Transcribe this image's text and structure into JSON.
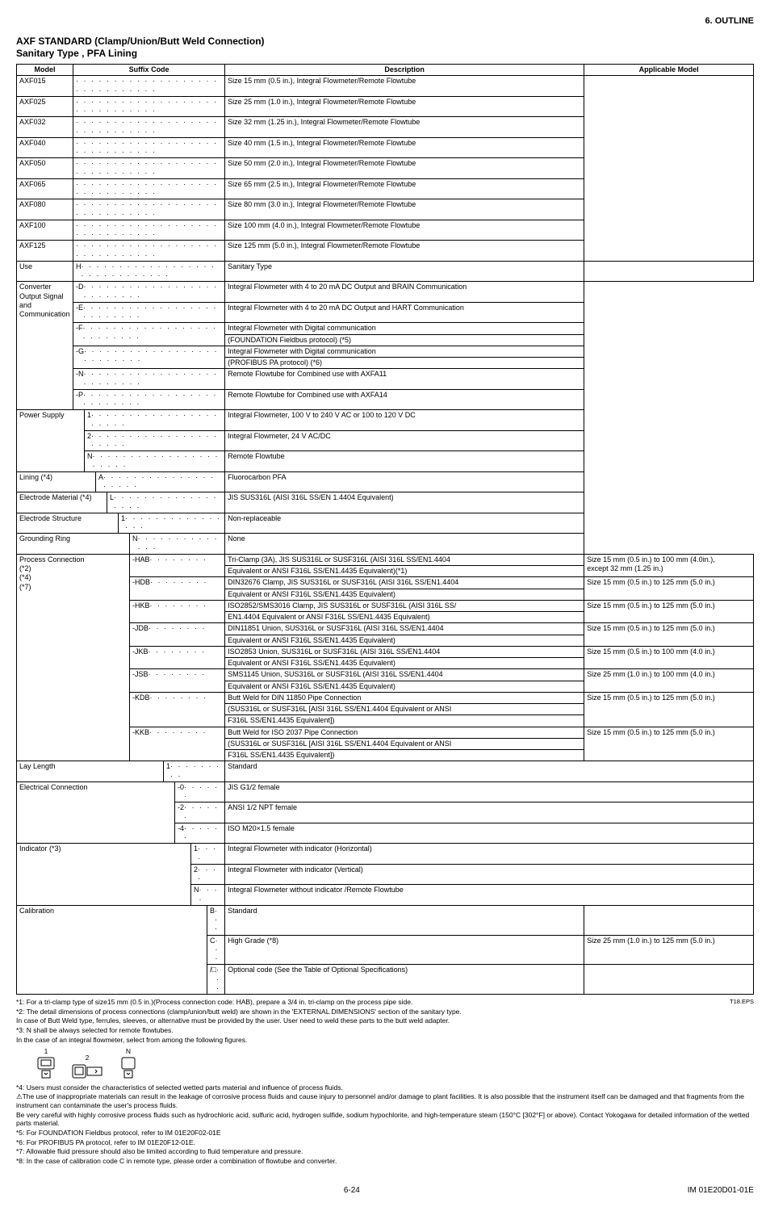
{
  "page_header": "6.  OUTLINE",
  "title": "AXF STANDARD  (Clamp/Union/Butt Weld Connection)",
  "subtitle": "Sanitary Type , PFA Lining",
  "columns": {
    "model": "Model",
    "suffix": "Suffix Code",
    "desc": "Description",
    "app": "Applicable Model"
  },
  "models": [
    {
      "code": "AXF015",
      "desc": "Size 15 mm (0.5 in.),  Integral Flowmeter/Remote Flowtube"
    },
    {
      "code": "AXF025",
      "desc": "Size 25 mm (1.0 in.),  Integral Flowmeter/Remote Flowtube"
    },
    {
      "code": "AXF032",
      "desc": "Size 32 mm (1.25 in.), Integral Flowmeter/Remote Flowtube"
    },
    {
      "code": "AXF040",
      "desc": "Size 40 mm (1.5 in.),  Integral Flowmeter/Remote Flowtube"
    },
    {
      "code": "AXF050",
      "desc": "Size 50 mm (2.0 in.),  Integral Flowmeter/Remote Flowtube"
    },
    {
      "code": "AXF065",
      "desc": "Size 65 mm (2.5 in.),  Integral Flowmeter/Remote Flowtube"
    },
    {
      "code": "AXF080",
      "desc": "Size 80 mm (3.0 in.),  Integral Flowmeter/Remote Flowtube"
    },
    {
      "code": "AXF100",
      "desc": "Size 100 mm (4.0 in.), Integral Flowmeter/Remote Flowtube"
    },
    {
      "code": "AXF125",
      "desc": "Size 125 mm (5.0 in.), Integral Flowmeter/Remote Flowtube"
    }
  ],
  "use": {
    "label": "Use",
    "code": "H",
    "desc": "Sanitary Type"
  },
  "converter_block_label": "Converter Output Signal and Communication",
  "converter": [
    {
      "code": "-D",
      "desc": "Integral Flowmeter with 4 to 20 mA DC Output and  BRAIN Communication"
    },
    {
      "code": "-E",
      "desc": "Integral Flowmeter with 4 to 20 mA DC Output and  HART Communication"
    },
    {
      "code": "-F",
      "desc_lines": [
        "Integral Flowmeter with Digital communication",
        "(FOUNDATION Fieldbus protocol) (*5)"
      ]
    },
    {
      "code": "-G",
      "desc_lines": [
        "Integral Flowmeter with Digital communication",
        "(PROFIBUS PA protocol) (*6)"
      ]
    },
    {
      "code": "-N",
      "desc": "Remote Flowtube for Combined  use with AXFA11"
    },
    {
      "code": "-P",
      "desc": "Remote Flowtube for Combined  use with AXFA14"
    }
  ],
  "power": {
    "label": "Power Supply",
    "rows": [
      {
        "code": "1",
        "desc": "Integral Flowmeter, 100 V to 240 V AC or 100 to 120 V DC"
      },
      {
        "code": "2",
        "desc": "Integral Flowmeter, 24 V AC/DC"
      },
      {
        "code": "N",
        "desc": "Remote Flowtube"
      }
    ]
  },
  "lining": {
    "label": "Lining (*4)",
    "code": "A",
    "desc": "Fluorocarbon PFA"
  },
  "elec_mat": {
    "label": "Electrode Material (*4)",
    "code": "L",
    "desc": "JIS SUS316L (AISI 316L SS/EN 1.4404 Equivalent)"
  },
  "elec_struct": {
    "label": "Electrode Structure",
    "code": "1",
    "desc": "Non-replaceable"
  },
  "ground_ring": {
    "label": "Grounding Ring",
    "code": "N",
    "desc": "None"
  },
  "process": {
    "label": "Process Connection (*2) (*4) (*7)",
    "rows": [
      {
        "code": "-HAB",
        "desc_lines": [
          "Tri-Clamp (3A), JIS SUS316L or SUSF316L (AISI 316L SS/EN1.4404",
          "Equivalent or ANSI F316L SS/EN1.4435 Equivalent)(*1)"
        ],
        "app_lines": [
          "Size 15 mm (0.5 in.) to 100 mm (4.0in.),",
          "except 32 mm (1.25 in.)"
        ]
      },
      {
        "code": "-HDB",
        "desc_lines": [
          "DIN32676 Clamp, JIS SUS316L or SUSF316L (AISI 316L SS/EN1.4404",
          "Equivalent or ANSI F316L SS/EN1.4435 Equivalent)"
        ],
        "app": "Size 15 mm (0.5 in.) to 125 mm (5.0 in.)"
      },
      {
        "code": "-HKB",
        "desc_lines": [
          "ISO2852/SMS3016 Clamp, JIS SUS316L or SUSF316L (AISI 316L SS/",
          "EN1.4404 Equivalent or ANSI F316L SS/EN1.4435 Equivalent)"
        ],
        "app": "Size 15 mm (0.5 in.) to 125 mm (5.0 in.)"
      },
      {
        "code": "-JDB",
        "desc_lines": [
          "DIN11851 Union, SUS316L or SUSF316L (AISI 316L SS/EN1.4404",
          "Equivalent or ANSI F316L SS/EN1.4435 Equivalent)"
        ],
        "app": "Size 15 mm (0.5 in.) to 125 mm (5.0 in.)"
      },
      {
        "code": "-JKB",
        "desc_lines": [
          "ISO2853 Union, SUS316L or SUSF316L (AISI 316L SS/EN1.4404",
          "Equivalent or ANSI F316L SS/EN1.4435 Equivalent)"
        ],
        "app": "Size 15 mm (0.5 in.) to 100 mm (4.0 in.)"
      },
      {
        "code": "-JSB",
        "desc_lines": [
          "SMS1145 Union, SUS316L or SUSF316L (AISI 316L SS/EN1.4404",
          "Equivalent or ANSI F316L SS/EN1.4435 Equivalent)"
        ],
        "app": "Size 25 mm (1.0 in.) to 100 mm (4.0 in.)"
      },
      {
        "code": "-KDB",
        "desc_lines": [
          "Butt Weld for DIN 11850 Pipe Connection",
          "(SUS316L or SUSF316L [AISI 316L SS/EN1.4404 Equivalent or ANSI",
          "F316L SS/EN1.4435 Equivalent])"
        ],
        "app": "Size 15 mm (0.5 in.) to 125 mm (5.0 in.)"
      },
      {
        "code": "-KKB",
        "desc_lines": [
          "Butt Weld for ISO 2037 Pipe Connection",
          "(SUS316L or SUSF316L [AISI 316L SS/EN1.4404 Equivalent or ANSI",
          "F316L SS/EN1.4435 Equivalent])"
        ],
        "app": "Size 15 mm (0.5 in.) to 125 mm (5.0 in.)"
      }
    ]
  },
  "lay_length": {
    "label": "Lay Length",
    "code": "1",
    "desc": "Standard"
  },
  "elec_conn": {
    "label": "Electrical Connection",
    "rows": [
      {
        "code": "-0",
        "desc": "JIS G1/2 female"
      },
      {
        "code": "-2",
        "desc": "ANSI 1/2 NPT female"
      },
      {
        "code": "-4",
        "desc": "ISO M20×1.5 female"
      }
    ]
  },
  "indicator": {
    "label": "Indicator (*3)",
    "rows": [
      {
        "code": "1",
        "desc": "Integral Flowmeter with indicator (Horizontal)"
      },
      {
        "code": "2",
        "desc": "Integral Flowmeter with indicator (Vertical)"
      },
      {
        "code": "N",
        "desc": "Integral Flowmeter without indicator /Remote Flowtube"
      }
    ]
  },
  "calibration": {
    "label": "Calibration",
    "rows": [
      {
        "code": "B",
        "desc": "Standard",
        "app": ""
      },
      {
        "code": "C",
        "desc": "High Grade (*8)",
        "app": "Size 25 mm (1.0 in.) to 125 mm (5.0 in.)"
      },
      {
        "code": "/□",
        "desc": "Optional code (See the Table of Optional Specifications)",
        "app": ""
      }
    ]
  },
  "notes": {
    "t18": "T18.EPS",
    "n1": "*1:  For a tri-clamp type of size15 mm (0.5 in.)(Process connection code: HAB), prepare a 3/4 in. tri-clamp on the process pipe side.",
    "n2": "*2:  The detail dimensions of process connections (clamp/union/butt weld) are shown in the 'EXTERNAL DIMENSIONS' section of the sanitary type.",
    "n2b": "In case of Butt Weld type, ferrules, sleeves, or alternative must be provided by the user. User need to weld these parts to the butt weld adapter.",
    "n3": "*3:  N shall be always selected for remote flowtubes.",
    "n3b": "In the case of an integral flowmeter, select from among the following figures.",
    "icons": [
      "1",
      "2",
      "N"
    ],
    "n4": "*4:    Users must consider the characteristics of selected wetted parts material and influence of process fluids.",
    "n4warn": "⚠The use of inappropriate materials can result in the leakage of corrosive process fluids and cause injury to personnel and/or damage to plant facilities. It is also possible that the instrument itself can be damaged and that fragments from the instrument can contaminate the user's process fluids.",
    "n4b": "Be very careful with highly corrosive process fluids such as hydrochloric acid, sulfuric acid, hydrogen sulfide, sodium hypochlorite, and high-temperature steam (150°C [302°F] or above). Contact Yokogawa for detailed information of the wetted parts material.",
    "n5": "*5:  For FOUNDATION Fieldbus protocol, refer to IM 01E20F02-01E",
    "n6": "*6:  For PROFIBUS PA protocol, refer to IM 01E20F12-01E.",
    "n7": "*7:  Allowable fluid pressure should also be limited according to fluid temperature and pressure.",
    "n8": "*8:  In the case of calibration code C in remote type, please order a combination of flowtube and converter."
  },
  "footer": {
    "page": "6-24",
    "doc": "IM 01E20D01-01E"
  }
}
